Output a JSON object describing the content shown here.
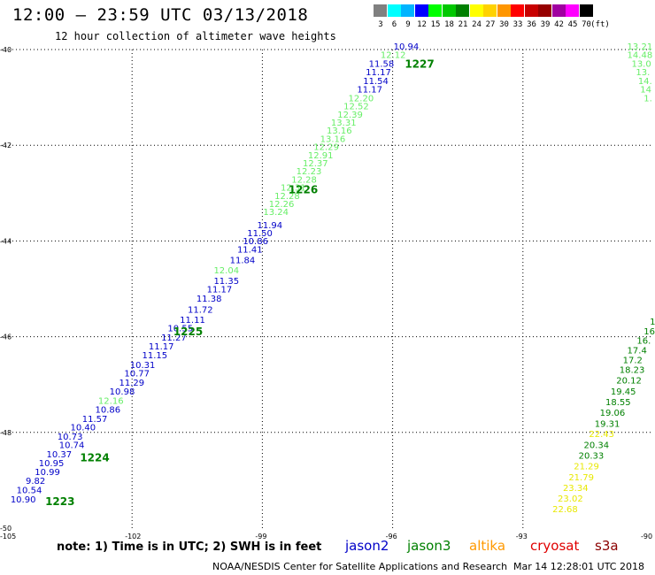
{
  "header": {
    "title": "12:00 – 23:59 UTC 03/13/2018",
    "subtitle": "12 hour collection of altimeter wave heights"
  },
  "legend": {
    "colors": [
      "#808080",
      "#00ffff",
      "#00b4ff",
      "#0000ff",
      "#00ff00",
      "#00c800",
      "#008000",
      "#ffff00",
      "#ffd200",
      "#ff9600",
      "#ff0000",
      "#c80000",
      "#960000",
      "#a000a0",
      "#ff00ff",
      "#000000"
    ],
    "labels": [
      "3",
      "6",
      "9",
      "12",
      "15",
      "18",
      "21",
      "24",
      "27",
      "30",
      "33",
      "36",
      "39",
      "42",
      "45",
      "70"
    ],
    "unit": "(ft)"
  },
  "axes": {
    "lat_labels": [
      "-40",
      "-42",
      "-44",
      "-46",
      "-48",
      "-50"
    ],
    "lon_labels": [
      "-105",
      "-102",
      "-99",
      "-96",
      "-93",
      "-90"
    ]
  },
  "colors": {
    "jason2": "#0000c8",
    "jason3": "#008000",
    "jason3_light": "#66ee66",
    "altika": "#ff9900",
    "cryosat": "#e00000",
    "s3a": "#8b0000",
    "yellow": "#e8e800"
  },
  "chart_data": {
    "type": "scatter",
    "track_left": [
      {
        "lon": -95.98,
        "lat": -40.0,
        "v": "10.94",
        "c": "jason2"
      },
      {
        "lon": -96.28,
        "lat": -40.18,
        "v": "12.12",
        "c": "light"
      },
      {
        "lon": -96.55,
        "lat": -40.36,
        "v": "11.58",
        "c": "jason2"
      },
      {
        "lon": -96.62,
        "lat": -40.54,
        "v": "11.17",
        "c": "jason2"
      },
      {
        "lon": -96.68,
        "lat": -40.72,
        "v": "11.54",
        "c": "jason2"
      },
      {
        "lon": -96.82,
        "lat": -40.9,
        "v": "11.17",
        "c": "jason2"
      },
      {
        "lon": -97.02,
        "lat": -41.08,
        "v": "12.20",
        "c": "light"
      },
      {
        "lon": -97.13,
        "lat": -41.25,
        "v": "12.52",
        "c": "light"
      },
      {
        "lon": -97.27,
        "lat": -41.42,
        "v": "12.39",
        "c": "light"
      },
      {
        "lon": -97.42,
        "lat": -41.59,
        "v": "13.31",
        "c": "light"
      },
      {
        "lon": -97.52,
        "lat": -41.76,
        "v": "13.16",
        "c": "light"
      },
      {
        "lon": -97.67,
        "lat": -41.93,
        "v": "13.16",
        "c": "light"
      },
      {
        "lon": -97.82,
        "lat": -42.1,
        "v": "12.29",
        "c": "light"
      },
      {
        "lon": -97.95,
        "lat": -42.27,
        "v": "12.91",
        "c": "light"
      },
      {
        "lon": -98.07,
        "lat": -42.44,
        "v": "12.37",
        "c": "light"
      },
      {
        "lon": -98.22,
        "lat": -42.61,
        "v": "12.23",
        "c": "light"
      },
      {
        "lon": -98.33,
        "lat": -42.78,
        "v": "12.28",
        "c": "light"
      },
      {
        "lon": -98.58,
        "lat": -42.95,
        "v": "12.31",
        "c": "light"
      },
      {
        "lon": -98.72,
        "lat": -43.12,
        "v": "12.28",
        "c": "light"
      },
      {
        "lon": -98.85,
        "lat": -43.29,
        "v": "12.26",
        "c": "light"
      },
      {
        "lon": -98.98,
        "lat": -43.46,
        "v": "13.24",
        "c": "light"
      },
      {
        "lon": -99.12,
        "lat": -43.73,
        "v": "11.94",
        "c": "jason2"
      },
      {
        "lon": -99.35,
        "lat": -43.9,
        "v": "11.50",
        "c": "jason2"
      },
      {
        "lon": -99.45,
        "lat": -44.07,
        "v": "10.86",
        "c": "jason2"
      },
      {
        "lon": -99.58,
        "lat": -44.24,
        "v": "11.41",
        "c": "jason2"
      },
      {
        "lon": -99.75,
        "lat": -44.46,
        "v": "11.84",
        "c": "jason2"
      },
      {
        "lon": -100.12,
        "lat": -44.68,
        "v": "12.04",
        "c": "light"
      },
      {
        "lon": -100.12,
        "lat": -44.9,
        "v": "11.35",
        "c": "jason2"
      },
      {
        "lon": -100.28,
        "lat": -45.07,
        "v": "11.17",
        "c": "jason2"
      },
      {
        "lon": -100.52,
        "lat": -45.27,
        "v": "11.38",
        "c": "jason2"
      },
      {
        "lon": -100.72,
        "lat": -45.5,
        "v": "11.72",
        "c": "jason2"
      },
      {
        "lon": -100.9,
        "lat": -45.71,
        "v": "11.11",
        "c": "jason2"
      },
      {
        "lon": -101.18,
        "lat": -45.89,
        "v": "10.55",
        "c": "jason2"
      },
      {
        "lon": -101.33,
        "lat": -46.08,
        "v": "11.27",
        "c": "jason2"
      },
      {
        "lon": -101.62,
        "lat": -46.27,
        "v": "11.17",
        "c": "jason2"
      },
      {
        "lon": -101.77,
        "lat": -46.45,
        "v": "11.15",
        "c": "jason2"
      },
      {
        "lon": -102.05,
        "lat": -46.65,
        "v": "10.31",
        "c": "jason2"
      },
      {
        "lon": -102.18,
        "lat": -46.83,
        "v": "10.77",
        "c": "jason2"
      },
      {
        "lon": -102.3,
        "lat": -47.02,
        "v": "11.29",
        "c": "jason2"
      },
      {
        "lon": -102.52,
        "lat": -47.21,
        "v": "10.98",
        "c": "jason2"
      },
      {
        "lon": -102.78,
        "lat": -47.4,
        "v": "12.16",
        "c": "light"
      },
      {
        "lon": -102.85,
        "lat": -47.59,
        "v": "10.86",
        "c": "jason2"
      },
      {
        "lon": -103.15,
        "lat": -47.78,
        "v": "11.57",
        "c": "jason2"
      },
      {
        "lon": -103.42,
        "lat": -47.96,
        "v": "10.40",
        "c": "jason2"
      },
      {
        "lon": -103.72,
        "lat": -48.15,
        "v": "10.73",
        "c": "jason2"
      },
      {
        "lon": -103.68,
        "lat": -48.33,
        "v": "10.74",
        "c": "jason2"
      },
      {
        "lon": -103.97,
        "lat": -48.52,
        "v": "10.37",
        "c": "jason2"
      },
      {
        "lon": -104.15,
        "lat": -48.71,
        "v": "10.95",
        "c": "jason2"
      },
      {
        "lon": -104.24,
        "lat": -48.89,
        "v": "10.99",
        "c": "jason2"
      },
      {
        "lon": -104.45,
        "lat": -49.08,
        "v": "9.82",
        "c": "jason2"
      },
      {
        "lon": -104.66,
        "lat": -49.27,
        "v": "10.54",
        "c": "jason2"
      },
      {
        "lon": -104.8,
        "lat": -49.46,
        "v": "10.90",
        "c": "jason2"
      }
    ],
    "time_labels": [
      {
        "lon": -95.72,
        "lat": -40.38,
        "v": "1227"
      },
      {
        "lon": -98.4,
        "lat": -43.0,
        "v": "1226"
      },
      {
        "lon": -101.05,
        "lat": -45.97,
        "v": "1225"
      },
      {
        "lon": -103.2,
        "lat": -48.6,
        "v": "1224"
      },
      {
        "lon": -104.0,
        "lat": -49.52,
        "v": "1223"
      }
    ],
    "track_top_right": [
      {
        "lon": -90.6,
        "lat": -40.0,
        "v": "13.21",
        "c": "light"
      },
      {
        "lon": -90.6,
        "lat": -40.18,
        "v": "14.48",
        "c": "light"
      },
      {
        "lon": -90.5,
        "lat": -40.36,
        "v": "13.0",
        "c": "light"
      },
      {
        "lon": -90.4,
        "lat": -40.54,
        "v": "13.",
        "c": "light"
      },
      {
        "lon": -90.35,
        "lat": -40.72,
        "v": "14.",
        "c": "light"
      },
      {
        "lon": -90.3,
        "lat": -40.9,
        "v": "14",
        "c": "light"
      },
      {
        "lon": -90.22,
        "lat": -41.08,
        "v": "1.",
        "c": "light"
      }
    ],
    "track_bottom_right": [
      {
        "lon": -90.08,
        "lat": -45.75,
        "v": "1",
        "c": "jason3"
      },
      {
        "lon": -90.22,
        "lat": -45.95,
        "v": "16",
        "c": "jason3"
      },
      {
        "lon": -90.38,
        "lat": -46.15,
        "v": "16.",
        "c": "jason3"
      },
      {
        "lon": -90.6,
        "lat": -46.35,
        "v": "17.4",
        "c": "jason3"
      },
      {
        "lon": -90.7,
        "lat": -46.55,
        "v": "17.2",
        "c": "jason3"
      },
      {
        "lon": -90.78,
        "lat": -46.76,
        "v": "18.23",
        "c": "jason3"
      },
      {
        "lon": -90.85,
        "lat": -46.98,
        "v": "20.12",
        "c": "jason3"
      },
      {
        "lon": -90.98,
        "lat": -47.21,
        "v": "19.45",
        "c": "jason3"
      },
      {
        "lon": -91.1,
        "lat": -47.43,
        "v": "18.55",
        "c": "jason3"
      },
      {
        "lon": -91.23,
        "lat": -47.65,
        "v": "19.06",
        "c": "jason3"
      },
      {
        "lon": -91.35,
        "lat": -47.88,
        "v": "19.31",
        "c": "jason3"
      },
      {
        "lon": -91.48,
        "lat": -48.1,
        "v": "22.43",
        "c": "yellow"
      },
      {
        "lon": -91.6,
        "lat": -48.33,
        "v": "20.34",
        "c": "jason3"
      },
      {
        "lon": -91.72,
        "lat": -48.55,
        "v": "20.33",
        "c": "jason3"
      },
      {
        "lon": -91.83,
        "lat": -48.77,
        "v": "21.29",
        "c": "yellow"
      },
      {
        "lon": -91.95,
        "lat": -49.0,
        "v": "21.79",
        "c": "yellow"
      },
      {
        "lon": -92.08,
        "lat": -49.22,
        "v": "23.34",
        "c": "yellow"
      },
      {
        "lon": -92.2,
        "lat": -49.45,
        "v": "23.02",
        "c": "yellow"
      },
      {
        "lon": -92.32,
        "lat": -49.67,
        "v": "22.68",
        "c": "yellow"
      }
    ]
  },
  "footer": {
    "note": "note: 1) Time is in UTC; 2) SWH is in feet",
    "sat_jason2": "jason2",
    "sat_jason3": "jason3",
    "sat_altika": "altika",
    "sat_cryosat": "cryosat",
    "sat_s3a": "s3a",
    "credit": "NOAA/NESDIS Center for Satellite Applications and Research",
    "timestamp": "Mar 14 12:28:01 UTC 2018"
  }
}
